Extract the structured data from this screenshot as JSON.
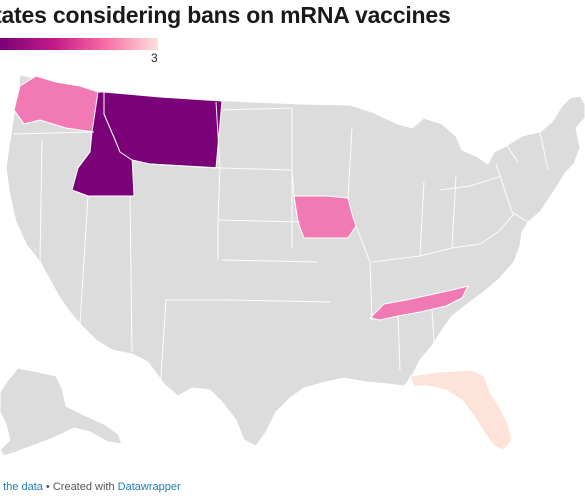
{
  "title": "tates considering bans on mRNA vaccines",
  "legend": {
    "max_label": "3",
    "colors": [
      "#7a0177",
      "#c51b8a",
      "#f768a1",
      "#fde0dd"
    ]
  },
  "map": {
    "no_data_color": "#dcdcdc",
    "highlighted": [
      {
        "state": "Montana",
        "value": 3,
        "color": "#7a0177"
      },
      {
        "state": "Idaho",
        "value": 3,
        "color": "#7a0177"
      },
      {
        "state": "Washington",
        "value": 2,
        "color": "#f27ab4"
      },
      {
        "state": "Iowa",
        "value": 2,
        "color": "#f27ab4"
      },
      {
        "state": "Tennessee",
        "value": 2,
        "color": "#f27ab4"
      },
      {
        "state": "Florida",
        "value": 1,
        "color": "#fde3d8"
      }
    ]
  },
  "footer": {
    "get_data": "t the data",
    "separator": " • Created with ",
    "tool": "Datawrapper"
  }
}
